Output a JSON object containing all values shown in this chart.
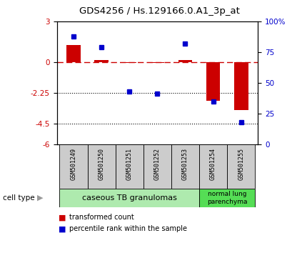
{
  "title": "GDS4256 / Hs.129166.0.A1_3p_at",
  "samples": [
    "GSM501249",
    "GSM501250",
    "GSM501251",
    "GSM501252",
    "GSM501253",
    "GSM501254",
    "GSM501255"
  ],
  "transformed_count": [
    1.3,
    0.15,
    -0.05,
    -0.05,
    0.2,
    -2.8,
    -3.5
  ],
  "percentile_rank": [
    88,
    79,
    43,
    41,
    82,
    35,
    18
  ],
  "ylim_left": [
    -6,
    3
  ],
  "ylim_right": [
    0,
    100
  ],
  "yticks_left": [
    3,
    0,
    -2.25,
    -4.5,
    -6
  ],
  "ytick_labels_left": [
    "3",
    "0",
    "-2.25",
    "-4.5",
    "-6"
  ],
  "yticks_right": [
    100,
    75,
    50,
    25,
    0
  ],
  "ytick_labels_right": [
    "100%",
    "75",
    "50",
    "25",
    "0"
  ],
  "bar_color": "#cc0000",
  "dot_color": "#0000cc",
  "hline_y": 0,
  "dotted_lines": [
    -2.25,
    -4.5
  ],
  "group1_indices": [
    0,
    1,
    2,
    3,
    4
  ],
  "group2_indices": [
    5,
    6
  ],
  "group1_label": "caseous TB granulomas",
  "group2_label": "normal lung\nparenchyma",
  "group1_color": "#aeeaae",
  "group2_color": "#55dd55",
  "cell_type_label": "cell type",
  "legend_bar_label": "transformed count",
  "legend_dot_label": "percentile rank within the sample",
  "bar_width": 0.5,
  "sample_box_color": "#cccccc",
  "fig_width": 4.3,
  "fig_height": 3.54,
  "dpi": 100
}
